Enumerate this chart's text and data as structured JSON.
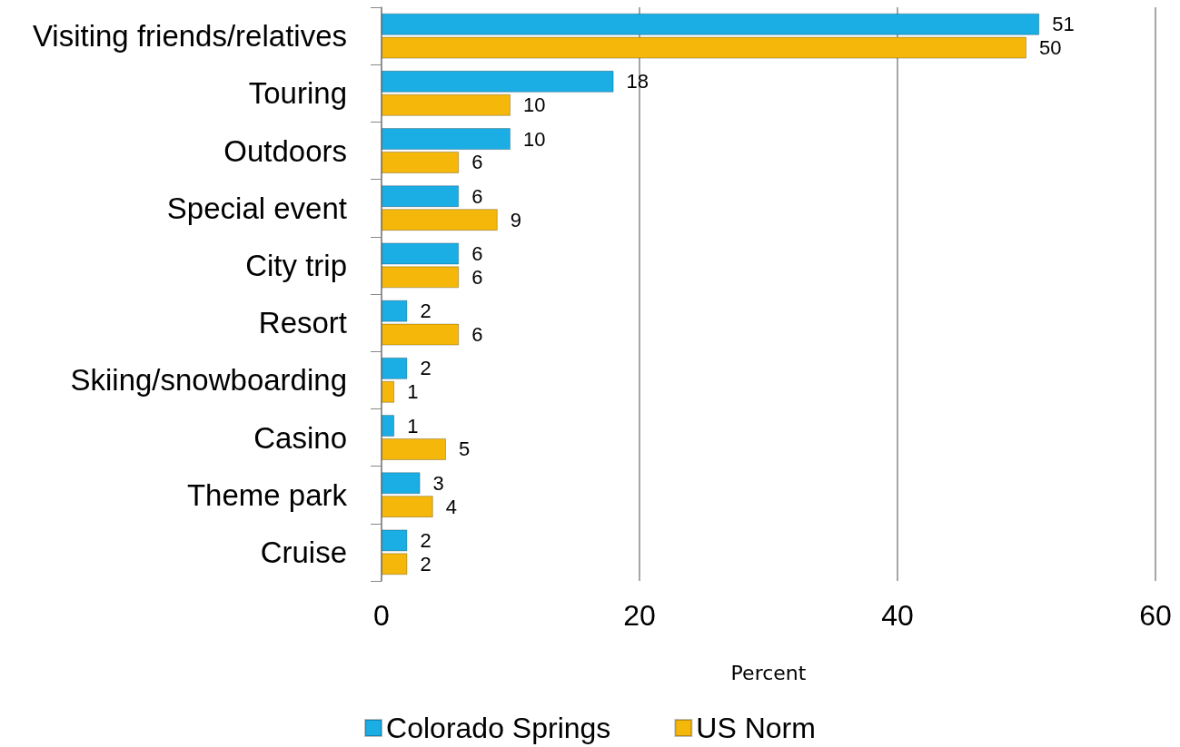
{
  "chart_data": {
    "type": "bar",
    "orientation": "horizontal",
    "xlabel": "Percent",
    "categories": [
      "Visiting friends/relatives",
      "Touring",
      "Outdoors",
      "Special event",
      "City trip",
      "Resort",
      "Skiing/snowboarding",
      "Casino",
      "Theme park",
      "Cruise"
    ],
    "series": [
      {
        "name": "Colorado Springs",
        "color": "#1aaee5",
        "values": [
          51,
          18,
          10,
          6,
          6,
          2,
          2,
          1,
          3,
          2
        ]
      },
      {
        "name": "US Norm",
        "color": "#f4b70a",
        "values": [
          50,
          10,
          6,
          9,
          6,
          6,
          1,
          5,
          4,
          2
        ]
      }
    ],
    "xlim": [
      0,
      60
    ],
    "xticks": [
      0,
      20,
      40,
      60
    ],
    "grid": "x",
    "legend": "bottom",
    "data_labels": true
  }
}
